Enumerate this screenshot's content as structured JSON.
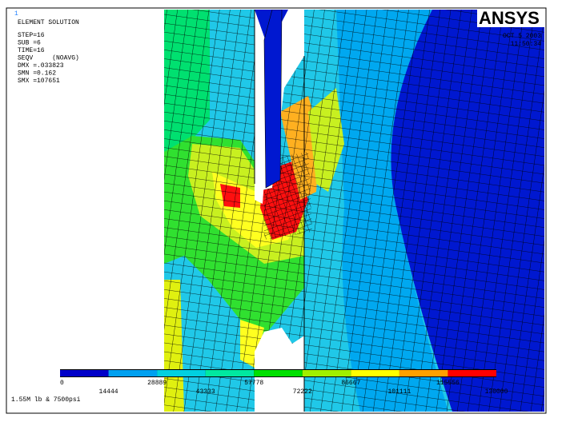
{
  "header": {
    "window_number": "1",
    "title": "ELEMENT SOLUTION",
    "lines": [
      "STEP=16",
      "SUB =6",
      "TIME=16",
      "SEQV     (NOAVG)",
      "DMX =.033823",
      "SMN =0.162",
      "SMX =107651"
    ]
  },
  "logo": "ANSYS",
  "date": "OCT  5 2003",
  "time": "11:50:34",
  "legend": {
    "labels": [
      0,
      14444,
      28889,
      43333,
      57778,
      72222,
      86667,
      101111,
      115556,
      130000
    ],
    "colors": [
      "#0000c8",
      "#00a0f0",
      "#00d0e0",
      "#00e8a0",
      "#00e000",
      "#a0f000",
      "#ffff00",
      "#ffa000",
      "#ff0000"
    ]
  },
  "caption": "1.55M lb & 7500psi"
}
